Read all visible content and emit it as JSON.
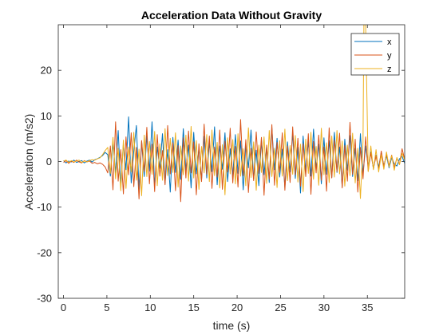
{
  "chart_data": {
    "type": "line",
    "title": "Acceleration Data Without Gravity",
    "xlabel": "time (s)",
    "ylabel": "Acceleration (m/s2)",
    "xlim": [
      -0.6,
      39.3
    ],
    "ylim": [
      -30,
      30
    ],
    "xticks": [
      0,
      5,
      10,
      15,
      20,
      25,
      30,
      35
    ],
    "xtick_labels": [
      "0",
      "5",
      "10",
      "15",
      "20",
      "25",
      "30",
      "35"
    ],
    "yticks": [
      -30,
      -20,
      -10,
      0,
      10,
      20
    ],
    "ytick_labels": [
      "-30",
      "-20",
      "-10",
      "0",
      "10",
      "20"
    ],
    "grid": false,
    "legend_position": "top-right",
    "series": [
      {
        "name": "x",
        "color": "#0072BD",
        "x": [
          0.0,
          0.3,
          0.6,
          0.9,
          1.2,
          1.5,
          1.8,
          2.1,
          2.4,
          2.7,
          3.0,
          3.3,
          3.6,
          3.9,
          4.2,
          4.5,
          4.8,
          5.1,
          5.4,
          5.7,
          6.0,
          6.3,
          6.6,
          6.9,
          7.2,
          7.5,
          7.8,
          8.1,
          8.4,
          8.7,
          9.0,
          9.3,
          9.6,
          9.9,
          10.2,
          10.5,
          10.8,
          11.1,
          11.4,
          11.7,
          12.0,
          12.3,
          12.6,
          12.9,
          13.2,
          13.5,
          13.8,
          14.1,
          14.4,
          14.7,
          15.0,
          15.3,
          15.6,
          15.9,
          16.2,
          16.5,
          16.8,
          17.1,
          17.4,
          17.7,
          18.0,
          18.3,
          18.6,
          18.9,
          19.2,
          19.5,
          19.8,
          20.1,
          20.4,
          20.7,
          21.0,
          21.3,
          21.6,
          21.9,
          22.2,
          22.5,
          22.8,
          23.1,
          23.4,
          23.7,
          24.0,
          24.3,
          24.6,
          24.9,
          25.2,
          25.5,
          25.8,
          26.1,
          26.4,
          26.7,
          27.0,
          27.3,
          27.6,
          27.9,
          28.2,
          28.5,
          28.8,
          29.1,
          29.4,
          29.7,
          30.0,
          30.3,
          30.6,
          30.9,
          31.2,
          31.5,
          31.8,
          32.1,
          32.4,
          32.7,
          33.0,
          33.3,
          33.6,
          33.9,
          34.2,
          34.5,
          34.8,
          35.1,
          35.4,
          35.7,
          36.0,
          36.3,
          36.6,
          36.9,
          37.2,
          37.5,
          37.8,
          38.1,
          38.4,
          38.7,
          39.0,
          39.3
        ],
        "values": [
          0.2,
          -0.3,
          0.1,
          -0.1,
          0.3,
          -0.2,
          0.0,
          0.2,
          -0.3,
          0.1,
          0.3,
          -0.1,
          0.4,
          0.6,
          0.9,
          1.3,
          2.0,
          1.5,
          -3.2,
          4.1,
          -2.5,
          6.8,
          -5.2,
          3.9,
          -1.8,
          9.8,
          -4.7,
          2.3,
          7.9,
          -6.1,
          4.4,
          -3.3,
          5.6,
          -2.1,
          8.7,
          -5.4,
          3.2,
          -1.5,
          6.1,
          -4.8,
          2.6,
          -6.7,
          5.3,
          -2.4,
          4.7,
          -3.9,
          7.2,
          -1.9,
          3.6,
          -5.8,
          6.4,
          -2.7,
          2.9,
          -4.1,
          5.5,
          -3.6,
          4.2,
          -2.2,
          7.6,
          -5.1,
          3.4,
          -1.7,
          6.3,
          -4.4,
          2.8,
          -3.1,
          5.9,
          -2.6,
          4.5,
          -6.2,
          3.7,
          -1.4,
          6.9,
          -3.8,
          2.5,
          -5.3,
          4.8,
          -2.9,
          3.3,
          -4.6,
          7.4,
          -1.8,
          5.1,
          -3.4,
          2.7,
          -5.7,
          4.3,
          -2.3,
          6.2,
          -3.7,
          3.1,
          -6.9,
          5.6,
          -2.1,
          4.4,
          -3.2,
          7.1,
          -1.6,
          3.8,
          -4.9,
          5.2,
          -2.8,
          4.6,
          -3.5,
          6.4,
          -2.4,
          3.2,
          -5.5,
          4.9,
          -1.9,
          5.7,
          -3.3,
          2.9,
          -4.2,
          6.1,
          -2.7,
          3.4,
          -1.1,
          2.1,
          -1.6,
          1.4,
          -1.2,
          1.8,
          -0.9,
          1.3,
          -1.4,
          0.8,
          -0.5,
          -1.0,
          0.6,
          1.1,
          -0.4
        ]
      },
      {
        "name": "y",
        "color": "#D95319",
        "x": [
          0.0,
          0.3,
          0.6,
          0.9,
          1.2,
          1.5,
          1.8,
          2.1,
          2.4,
          2.7,
          3.0,
          3.3,
          3.6,
          3.9,
          4.2,
          4.5,
          4.8,
          5.1,
          5.4,
          5.7,
          6.0,
          6.3,
          6.6,
          6.9,
          7.2,
          7.5,
          7.8,
          8.1,
          8.4,
          8.7,
          9.0,
          9.3,
          9.6,
          9.9,
          10.2,
          10.5,
          10.8,
          11.1,
          11.4,
          11.7,
          12.0,
          12.3,
          12.6,
          12.9,
          13.2,
          13.5,
          13.8,
          14.1,
          14.4,
          14.7,
          15.0,
          15.3,
          15.6,
          15.9,
          16.2,
          16.5,
          16.8,
          17.1,
          17.4,
          17.7,
          18.0,
          18.3,
          18.6,
          18.9,
          19.2,
          19.5,
          19.8,
          20.1,
          20.4,
          20.7,
          21.0,
          21.3,
          21.6,
          21.9,
          22.2,
          22.5,
          22.8,
          23.1,
          23.4,
          23.7,
          24.0,
          24.3,
          24.6,
          24.9,
          25.2,
          25.5,
          25.8,
          26.1,
          26.4,
          26.7,
          27.0,
          27.3,
          27.6,
          27.9,
          28.2,
          28.5,
          28.8,
          29.1,
          29.4,
          29.7,
          30.0,
          30.3,
          30.6,
          30.9,
          31.2,
          31.5,
          31.8,
          32.1,
          32.4,
          32.7,
          33.0,
          33.3,
          33.6,
          33.9,
          34.2,
          34.5,
          34.8,
          35.1,
          35.4,
          35.7,
          36.0,
          36.3,
          36.6,
          36.9,
          37.2,
          37.5,
          37.8,
          38.1,
          38.4,
          38.7,
          39.0,
          39.3
        ],
        "values": [
          -0.2,
          0.2,
          -0.4,
          0.1,
          -0.2,
          0.3,
          -0.1,
          -0.3,
          0.2,
          -0.1,
          0.1,
          -0.4,
          -0.2,
          -0.5,
          -0.3,
          -0.6,
          -1.2,
          -2.5,
          3.4,
          -6.2,
          8.7,
          -4.3,
          2.6,
          -7.1,
          5.4,
          -2.9,
          6.3,
          -5.5,
          3.1,
          -8.2,
          4.6,
          -2.2,
          7.5,
          -4.9,
          3.8,
          -6.6,
          5.9,
          -3.2,
          2.4,
          -5.1,
          7.9,
          -2.7,
          4.1,
          -6.4,
          3.5,
          -8.8,
          5.2,
          -3.6,
          6.7,
          -2.5,
          4.3,
          -7.3,
          3.9,
          -4.4,
          8.2,
          -2.8,
          5.6,
          -5.9,
          3.2,
          -3.4,
          6.9,
          -6.1,
          4.5,
          -2.3,
          7.3,
          -4.7,
          3.3,
          -5.6,
          9.2,
          -3.1,
          4.8,
          -6.8,
          2.9,
          -4.2,
          6.5,
          -2.6,
          5.3,
          -7.4,
          3.6,
          -3.9,
          8.1,
          -5.2,
          4.2,
          -2.4,
          6.3,
          -6.3,
          3.4,
          -4.6,
          7.6,
          -2.9,
          5.1,
          -5.4,
          3.9,
          -3.3,
          6.1,
          -7.2,
          4.4,
          -2.5,
          5.8,
          -4.1,
          3.2,
          -6.5,
          7.4,
          -3.6,
          4.7,
          -2.2,
          6.2,
          -5.8,
          3.5,
          -4.3,
          8.6,
          -2.8,
          4.9,
          -6.7,
          3.1,
          -3.8,
          5.4,
          -2.1,
          1.9,
          -1.5,
          1.2,
          -1.8,
          2.3,
          -1.1,
          1.6,
          -0.9,
          1.4,
          -1.3,
          0.7,
          -0.6,
          2.8,
          0.4
        ]
      },
      {
        "name": "z",
        "color": "#EDB120",
        "x": [
          0.0,
          0.3,
          0.6,
          0.9,
          1.2,
          1.5,
          1.8,
          2.1,
          2.4,
          2.7,
          3.0,
          3.3,
          3.6,
          3.9,
          4.2,
          4.5,
          4.8,
          5.1,
          5.4,
          5.7,
          6.0,
          6.3,
          6.6,
          6.9,
          7.2,
          7.5,
          7.8,
          8.1,
          8.4,
          8.7,
          9.0,
          9.3,
          9.6,
          9.9,
          10.2,
          10.5,
          10.8,
          11.1,
          11.4,
          11.7,
          12.0,
          12.3,
          12.6,
          12.9,
          13.2,
          13.5,
          13.8,
          14.1,
          14.4,
          14.7,
          15.0,
          15.3,
          15.6,
          15.9,
          16.2,
          16.5,
          16.8,
          17.1,
          17.4,
          17.7,
          18.0,
          18.3,
          18.6,
          18.9,
          19.2,
          19.5,
          19.8,
          20.1,
          20.4,
          20.7,
          21.0,
          21.3,
          21.6,
          21.9,
          22.2,
          22.5,
          22.8,
          23.1,
          23.4,
          23.7,
          24.0,
          24.3,
          24.6,
          24.9,
          25.2,
          25.5,
          25.8,
          26.1,
          26.4,
          26.7,
          27.0,
          27.3,
          27.6,
          27.9,
          28.2,
          28.5,
          28.8,
          29.1,
          29.4,
          29.7,
          30.0,
          30.3,
          30.6,
          30.9,
          31.2,
          31.5,
          31.8,
          32.1,
          32.4,
          32.7,
          33.0,
          33.3,
          33.6,
          33.9,
          34.2,
          34.5,
          34.6,
          34.7,
          34.8,
          35.1,
          35.4,
          35.7,
          36.0,
          36.3,
          36.6,
          36.9,
          37.2,
          37.5,
          37.8,
          38.1,
          38.4,
          38.7,
          39.0,
          39.3
        ],
        "values": [
          0.1,
          0.3,
          -0.2,
          0.2,
          -0.1,
          0.1,
          0.3,
          -0.2,
          0.1,
          -0.1,
          0.2,
          0.4,
          0.3,
          0.6,
          0.8,
          1.5,
          2.4,
          3.1,
          -2.6,
          5.3,
          -3.8,
          2.9,
          -6.4,
          4.7,
          -5.9,
          3.2,
          -2.3,
          6.4,
          -4.1,
          2.7,
          -7.5,
          5.8,
          -3.3,
          4.4,
          -2.8,
          6.6,
          -5.3,
          3.9,
          -4.1,
          7.2,
          -3.1,
          5.1,
          -2.4,
          6.3,
          -5.6,
          3.4,
          -2.9,
          5.8,
          -4.3,
          7.7,
          -3.6,
          4.6,
          -6.1,
          3.3,
          -2.5,
          5.9,
          -4.4,
          6.9,
          -3.1,
          4.2,
          -5.8,
          3.7,
          -7.3,
          5.2,
          -2.7,
          4.8,
          -4.9,
          6.1,
          -3.2,
          2.8,
          -5.3,
          7.4,
          -3.5,
          4.3,
          -6.3,
          3.6,
          -2.4,
          5.4,
          -4.8,
          6.8,
          -3.3,
          2.9,
          -5.7,
          4.6,
          -3.2,
          7.1,
          -4.2,
          3.5,
          -2.8,
          5.7,
          -4.5,
          3.8,
          -6.6,
          4.9,
          -2.6,
          6.4,
          -3.9,
          3.3,
          -5.2,
          7.3,
          -2.9,
          4.1,
          -4.6,
          5.6,
          -3.4,
          6.8,
          -2.7,
          4.5,
          -5.4,
          3.6,
          -3.1,
          6.2,
          -4.7,
          2.9,
          -8.1,
          4.4,
          30.0,
          30.0,
          30.0,
          -2.2,
          3.4,
          -1.8,
          2.6,
          -2.3,
          1.5,
          -1.7,
          2.1,
          -1.2,
          1.3,
          -1.9,
          0.9,
          -0.7,
          1.8,
          0.3
        ]
      }
    ]
  }
}
